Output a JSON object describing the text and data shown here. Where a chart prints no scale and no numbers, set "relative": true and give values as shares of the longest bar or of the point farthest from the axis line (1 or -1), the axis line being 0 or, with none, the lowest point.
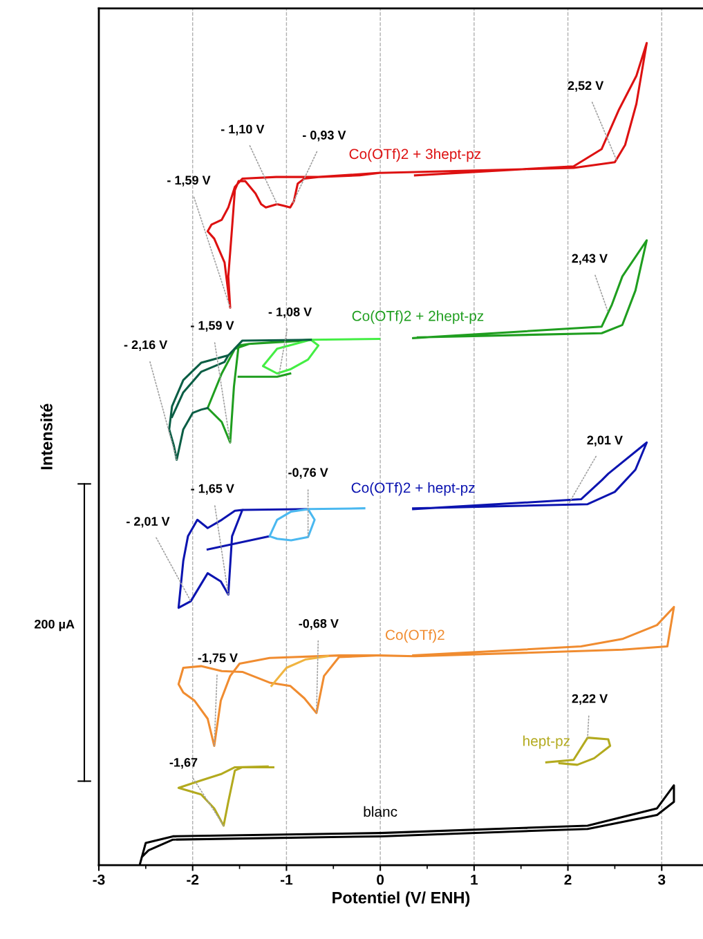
{
  "chart_data": {
    "type": "line",
    "relative": true,
    "xlabel": "Potentiel (V/ ENH)",
    "ylabel": "Intensité",
    "xlim": [
      -3,
      3.44
    ],
    "xticks": [
      -3,
      -2,
      -1,
      0,
      1,
      2,
      3
    ],
    "grid": "x",
    "series": [
      {
        "name": "Co(OTf)2 + 3hept-pz",
        "color": "#dd1111",
        "x": [
          0.37,
          2.06,
          2.36,
          2.54,
          2.73,
          2.84,
          2.73,
          2.61,
          2.5,
          2.06,
          0.37,
          -0.01,
          -0.22,
          -0.66,
          -0.81,
          -0.88,
          -0.92,
          -0.96,
          -1.03,
          -1.1,
          -1.22,
          -1.27,
          -1.33,
          -1.44,
          -1.51,
          -1.55,
          -1.58,
          -1.62,
          -1.6,
          -1.66,
          -1.77,
          -1.84,
          -1.8,
          -1.69,
          -1.62,
          -1.55,
          -1.47,
          -1.11,
          -0.66,
          -0.01
        ],
        "values": [
          0.839,
          0.85,
          0.871,
          0.918,
          0.96,
          1.0,
          0.926,
          0.876,
          0.855,
          0.848,
          0.843,
          0.842,
          0.839,
          0.837,
          0.835,
          0.829,
          0.808,
          0.8,
          0.802,
          0.804,
          0.8,
          0.804,
          0.817,
          0.832,
          0.832,
          0.821,
          0.775,
          0.716,
          0.678,
          0.733,
          0.762,
          0.771,
          0.779,
          0.785,
          0.8,
          0.825,
          0.835,
          0.837,
          0.837,
          0.842
        ]
      },
      {
        "name": "Co(OTf)2 + 2hept-pz",
        "color": "#1f9e1f",
        "x": [
          0.35,
          2.36,
          2.47,
          2.58,
          2.84,
          2.72,
          2.58,
          2.36,
          0.4,
          null,
          -0.74,
          -1.4,
          -1.51,
          -1.56,
          -1.6,
          -1.69,
          -1.84,
          -1.69,
          -1.55,
          -1.4,
          -0.8,
          null,
          -1.51,
          -1.1,
          -0.96
        ],
        "values": [
          0.641,
          0.655,
          0.682,
          0.716,
          0.76,
          0.699,
          0.657,
          0.647,
          0.642,
          null,
          0.639,
          0.634,
          0.632,
          0.582,
          0.514,
          0.539,
          0.556,
          0.598,
          0.628,
          0.634,
          0.638,
          null,
          0.594,
          0.594,
          0.598
        ]
      },
      {
        "color": "#44ee44",
        "x": [
          -0.01,
          -0.74,
          -0.66,
          -0.77,
          -0.96,
          -1.1,
          -1.25,
          -1.1,
          -0.74
        ],
        "values": [
          0.64,
          0.639,
          0.632,
          0.615,
          0.603,
          0.598,
          0.607,
          0.628,
          0.639
        ]
      },
      {
        "color": "#0b5e45",
        "x": [
          -0.74,
          -1.47,
          -1.62,
          -1.91,
          -2.1,
          -2.22,
          -2.25,
          -2.2,
          -2.17,
          -2.1,
          -2.0,
          -1.91,
          -1.84,
          null,
          -2.22,
          -2.1,
          -1.91,
          -1.66,
          -1.62
        ],
        "values": [
          0.639,
          0.638,
          0.62,
          0.611,
          0.59,
          0.558,
          0.53,
          0.51,
          0.493,
          0.53,
          0.55,
          0.554,
          0.556,
          null,
          0.545,
          0.575,
          0.6,
          0.612,
          0.62
        ]
      },
      {
        "name": "Co(OTf)2 + hept-pz",
        "color": "#0c14b0",
        "x": [
          0.35,
          2.14,
          2.36,
          2.43,
          2.84,
          2.72,
          2.5,
          2.21,
          0.35,
          null,
          -0.77,
          -1.47,
          -1.58,
          -1.62,
          -1.7,
          -1.84,
          -2.02,
          -2.15,
          -2.1,
          -2.05,
          -1.95,
          -1.84,
          -1.69,
          -1.55,
          -1.47,
          null,
          -1.84,
          -1.18
        ],
        "values": [
          0.433,
          0.445,
          0.468,
          0.476,
          0.514,
          0.481,
          0.454,
          0.439,
          0.434,
          null,
          0.433,
          0.432,
          0.4,
          0.329,
          0.345,
          0.355,
          0.321,
          0.313,
          0.37,
          0.4,
          0.42,
          0.41,
          0.42,
          0.431,
          0.432,
          null,
          0.384,
          0.4
        ]
      },
      {
        "color": "#4ab8f0",
        "x": [
          -0.17,
          -0.77,
          -0.7,
          -0.77,
          -0.95,
          -1.1,
          -1.18,
          -1.1,
          -0.95,
          -0.77
        ],
        "values": [
          0.434,
          0.433,
          0.42,
          0.399,
          0.395,
          0.397,
          0.4,
          0.42,
          0.43,
          0.433
        ]
      },
      {
        "name": "Co(OTf)2",
        "color": "#f08c30",
        "x": [
          0.35,
          2.14,
          2.58,
          2.95,
          3.13,
          3.06,
          2.58,
          0.37,
          -0.01,
          -0.44,
          -1.18,
          -1.5,
          -1.6,
          -1.7,
          -1.77,
          -1.84,
          -1.98,
          -2.1,
          -2.15,
          -2.1,
          -1.91,
          -1.69,
          -1.47,
          -1.18,
          -0.96,
          -0.81,
          -0.68,
          -0.6,
          -0.44,
          -0.01
        ],
        "values": [
          0.255,
          0.266,
          0.275,
          0.292,
          0.314,
          0.266,
          0.262,
          0.254,
          0.255,
          0.255,
          0.252,
          0.245,
          0.23,
          0.2,
          0.145,
          0.178,
          0.2,
          0.21,
          0.22,
          0.24,
          0.242,
          0.236,
          0.235,
          0.222,
          0.218,
          0.203,
          0.185,
          0.23,
          0.253,
          0.255
        ]
      },
      {
        "color": "#f0b440",
        "x": [
          -1.16,
          -1.0,
          -0.8,
          -0.56
        ],
        "values": [
          0.218,
          0.24,
          0.25,
          0.254
        ]
      },
      {
        "name": "hept-pz",
        "color": "#b3aa1e",
        "x": [
          -1.14,
          -1.47,
          -1.55,
          -1.62,
          -1.67,
          -1.77,
          -1.91,
          -2.15,
          -1.91,
          -1.69,
          -1.55,
          -1.2,
          null,
          1.77,
          2.06,
          2.21,
          2.43,
          2.45,
          2.28,
          2.1,
          1.91
        ],
        "values": [
          0.119,
          0.119,
          0.115,
          0.077,
          0.048,
          0.069,
          0.086,
          0.094,
          0.103,
          0.111,
          0.119,
          0.12,
          null,
          0.125,
          0.128,
          0.155,
          0.153,
          0.145,
          0.13,
          0.122,
          0.124
        ]
      },
      {
        "name": "blanc",
        "color": "#000000",
        "x": [
          -2.56,
          -2.5,
          -2.21,
          0,
          2.21,
          2.95,
          3.13,
          3.13,
          2.95,
          2.21,
          0,
          -2.21,
          -2.47,
          -2.54
        ],
        "values": [
          0.002,
          0.027,
          0.035,
          0.039,
          0.048,
          0.069,
          0.097,
          0.077,
          0.061,
          0.044,
          0.035,
          0.031,
          0.018,
          0.01
        ]
      }
    ],
    "annotations": [
      "200 µA",
      {
        "text": "2,52 V",
        "x": 2.52,
        "y": 0.857
      },
      {
        "text": "- 1,10 V",
        "x": -1.1,
        "y": 0.804
      },
      {
        "text": "- 0,93 V",
        "x": -0.93,
        "y": 0.806
      },
      {
        "text": "- 1,59 V",
        "x": -1.6,
        "y": 0.678
      },
      {
        "text": "2,43 V",
        "x": 2.43,
        "y": 0.672
      },
      {
        "text": "- 1,08 V",
        "x": -1.08,
        "y": 0.596
      },
      {
        "text": "- 1,59 V",
        "x": -1.6,
        "y": 0.514
      },
      {
        "text": "- 2,16 V",
        "x": -2.17,
        "y": 0.493
      },
      {
        "text": "2,01 V",
        "x": 2.01,
        "y": 0.44
      },
      {
        "text": "-0,76 V",
        "x": -0.77,
        "y": 0.399
      },
      {
        "text": "- 1,65 V",
        "x": -1.62,
        "y": 0.329
      },
      {
        "text": "- 2,01 V",
        "x": -2.02,
        "y": 0.321
      },
      {
        "text": "-0,68 V",
        "x": -0.68,
        "y": 0.185
      },
      {
        "text": "-1,75 V",
        "x": -1.77,
        "y": 0.145
      },
      {
        "text": "2,22 V",
        "x": 2.21,
        "y": 0.155
      },
      {
        "text": "-1,67",
        "x": -1.67,
        "y": 0.048
      }
    ]
  }
}
